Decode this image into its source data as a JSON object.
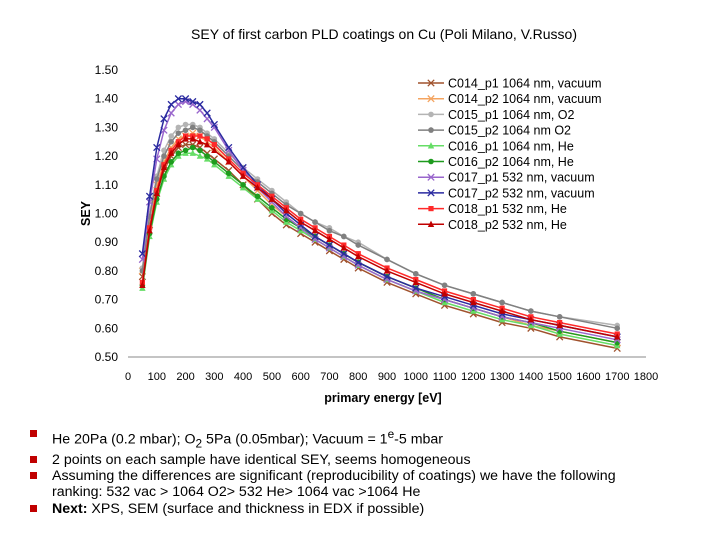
{
  "chart_data": {
    "type": "line",
    "title": "SEY of first carbon PLD coatings on Cu (Poli Milano, V.Russo)",
    "xlabel": "primary energy [eV]",
    "ylabel": "SEY",
    "xlim": [
      0,
      1800
    ],
    "ylim": [
      0.5,
      1.5
    ],
    "x_ticks": [
      "0",
      "100",
      "200",
      "300",
      "400",
      "500",
      "600",
      "700",
      "800",
      "900",
      "1000",
      "1100",
      "1200",
      "1300",
      "1400",
      "1500",
      "1600",
      "1700",
      "1800"
    ],
    "y_ticks": [
      "0.50",
      "0.60",
      "0.70",
      "0.80",
      "0.90",
      "1.00",
      "1.10",
      "1.20",
      "1.30",
      "1.40",
      "1.50"
    ],
    "grid": false,
    "legend_position": "top-right",
    "x": [
      50,
      75,
      100,
      125,
      150,
      175,
      200,
      225,
      250,
      275,
      300,
      350,
      400,
      450,
      500,
      550,
      600,
      650,
      700,
      750,
      800,
      900,
      1000,
      1100,
      1200,
      1300,
      1400,
      1500,
      1700
    ],
    "series": [
      {
        "name": "C014_p1 1064 nm, vacuum",
        "color": "#a0522d",
        "marker": "x",
        "values": [
          0.78,
          0.96,
          1.07,
          1.15,
          1.2,
          1.23,
          1.24,
          1.24,
          1.23,
          1.21,
          1.19,
          1.15,
          1.1,
          1.05,
          1.0,
          0.96,
          0.93,
          0.9,
          0.87,
          0.84,
          0.81,
          0.76,
          0.72,
          0.68,
          0.65,
          0.62,
          0.6,
          0.57,
          0.53
        ]
      },
      {
        "name": "C014_p2 1064 nm, vacuum",
        "color": "#f4a460",
        "marker": "x",
        "values": [
          0.8,
          0.98,
          1.1,
          1.18,
          1.23,
          1.26,
          1.27,
          1.28,
          1.27,
          1.25,
          1.23,
          1.18,
          1.13,
          1.08,
          1.03,
          0.99,
          0.95,
          0.92,
          0.89,
          0.86,
          0.83,
          0.78,
          0.74,
          0.7,
          0.67,
          0.64,
          0.61,
          0.59,
          0.55
        ]
      },
      {
        "name": "C015_p1 1064 nm, O2",
        "color": "#b4b4b4",
        "marker": "o",
        "values": [
          0.81,
          1.0,
          1.13,
          1.22,
          1.27,
          1.3,
          1.31,
          1.31,
          1.3,
          1.28,
          1.26,
          1.21,
          1.16,
          1.12,
          1.08,
          1.04,
          1.0,
          0.97,
          0.95,
          0.92,
          0.9,
          0.84,
          0.79,
          0.75,
          0.72,
          0.69,
          0.66,
          0.64,
          0.61
        ]
      },
      {
        "name": "C015_p2 1064 nm O2",
        "color": "#808080",
        "marker": "o",
        "values": [
          0.8,
          0.99,
          1.12,
          1.2,
          1.25,
          1.28,
          1.29,
          1.3,
          1.29,
          1.27,
          1.25,
          1.2,
          1.15,
          1.11,
          1.07,
          1.03,
          1.0,
          0.97,
          0.94,
          0.92,
          0.89,
          0.84,
          0.79,
          0.75,
          0.72,
          0.69,
          0.66,
          0.64,
          0.6
        ]
      },
      {
        "name": "C016_p1 1064 nm, He",
        "color": "#66dd66",
        "marker": "^",
        "values": [
          0.74,
          0.92,
          1.04,
          1.12,
          1.17,
          1.2,
          1.21,
          1.21,
          1.2,
          1.19,
          1.17,
          1.13,
          1.09,
          1.05,
          1.01,
          0.97,
          0.94,
          0.91,
          0.88,
          0.85,
          0.82,
          0.77,
          0.73,
          0.69,
          0.66,
          0.63,
          0.61,
          0.58,
          0.54
        ]
      },
      {
        "name": "C016_p2 1064 nm, He",
        "color": "#1e9b1e",
        "marker": "o",
        "values": [
          0.75,
          0.93,
          1.05,
          1.13,
          1.18,
          1.21,
          1.22,
          1.23,
          1.22,
          1.2,
          1.18,
          1.14,
          1.1,
          1.06,
          1.02,
          0.98,
          0.95,
          0.92,
          0.89,
          0.86,
          0.83,
          0.78,
          0.74,
          0.7,
          0.67,
          0.64,
          0.62,
          0.59,
          0.55
        ]
      },
      {
        "name": "C017_p1 532 nm, vacuum",
        "color": "#9966cc",
        "marker": "x",
        "values": [
          0.84,
          1.04,
          1.19,
          1.29,
          1.35,
          1.38,
          1.39,
          1.38,
          1.36,
          1.33,
          1.3,
          1.22,
          1.15,
          1.09,
          1.04,
          0.99,
          0.95,
          0.91,
          0.88,
          0.85,
          0.82,
          0.77,
          0.73,
          0.7,
          0.67,
          0.64,
          0.62,
          0.6,
          0.56
        ]
      },
      {
        "name": "C017_p2 532 nm, vacuum",
        "color": "#2a2aa0",
        "marker": "x",
        "values": [
          0.86,
          1.06,
          1.23,
          1.33,
          1.38,
          1.4,
          1.4,
          1.39,
          1.38,
          1.35,
          1.31,
          1.23,
          1.16,
          1.1,
          1.05,
          1.0,
          0.96,
          0.92,
          0.89,
          0.86,
          0.83,
          0.78,
          0.74,
          0.71,
          0.68,
          0.65,
          0.63,
          0.61,
          0.57
        ]
      },
      {
        "name": "C018_p1 532 nm, He",
        "color": "#ff2a2a",
        "marker": "s",
        "values": [
          0.76,
          0.95,
          1.08,
          1.17,
          1.22,
          1.25,
          1.27,
          1.27,
          1.27,
          1.26,
          1.24,
          1.19,
          1.14,
          1.1,
          1.06,
          1.02,
          0.98,
          0.95,
          0.92,
          0.89,
          0.86,
          0.81,
          0.77,
          0.73,
          0.7,
          0.67,
          0.64,
          0.62,
          0.58
        ]
      },
      {
        "name": "C018_p2 532 nm, He",
        "color": "#c00000",
        "marker": "^",
        "values": [
          0.75,
          0.94,
          1.07,
          1.16,
          1.21,
          1.24,
          1.26,
          1.26,
          1.25,
          1.24,
          1.22,
          1.18,
          1.13,
          1.09,
          1.05,
          1.01,
          0.97,
          0.94,
          0.91,
          0.88,
          0.85,
          0.8,
          0.76,
          0.72,
          0.69,
          0.66,
          0.63,
          0.61,
          0.57
        ]
      }
    ]
  },
  "bullets": {
    "item1": {
      "he_text": "He 20Pa (0.2 mbar); O",
      "o2_sub": "2",
      "tail": " 5Pa (0.05mbar); Vacuum = 1",
      "exp": "e",
      "end": "-5 mbar"
    },
    "item2": "2 points on each sample have identical SEY, seems homogeneous",
    "item3_line1": "Assuming the differences are significant (reproducibility of coatings) we have the following",
    "item3_line2": "ranking:   532 vac > 1064 O2> 532 He> 1064 vac >1064 He",
    "item4_bold": "Next:",
    "item4_text": " XPS, SEM (surface and thickness in EDX if possible)"
  }
}
